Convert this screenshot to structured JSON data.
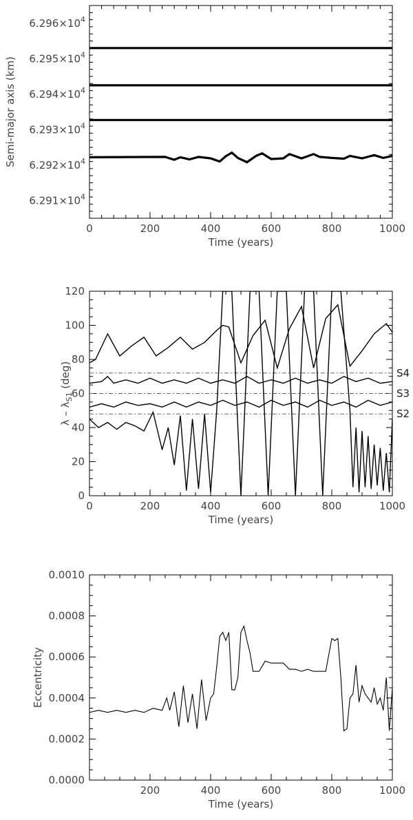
{
  "chart_data": [
    {
      "type": "line",
      "xlabel": "Time (years)",
      "ylabel": "Semi-major axis (km)",
      "xlim": [
        0,
        1000
      ],
      "ylim": [
        62905,
        62965
      ],
      "xticks": [
        "0",
        "200",
        "400",
        "600",
        "800",
        "1000"
      ],
      "yticks": [
        {
          "value": 62910,
          "mantissa": "6.291",
          "base": "×10",
          "exp": "4"
        },
        {
          "value": 62920,
          "mantissa": "6.292",
          "base": "×10",
          "exp": "4"
        },
        {
          "value": 62930,
          "mantissa": "6.293",
          "base": "×10",
          "exp": "4"
        },
        {
          "value": 62940,
          "mantissa": "6.294",
          "base": "×10",
          "exp": "4"
        },
        {
          "value": 62950,
          "mantissa": "6.295",
          "base": "×10",
          "exp": "4"
        },
        {
          "value": 62960,
          "mantissa": "6.296",
          "base": "×10",
          "exp": "4"
        }
      ],
      "series": [
        {
          "x": [
            0,
            1000
          ],
          "y": [
            62953.0,
            62953.0
          ]
        },
        {
          "x": [
            0,
            1000
          ],
          "y": [
            62942.5,
            62942.5
          ]
        },
        {
          "x": [
            0,
            1000
          ],
          "y": [
            62932.7,
            62932.7
          ]
        },
        {
          "x": [
            0,
            250,
            260,
            280,
            300,
            330,
            360,
            400,
            430,
            450,
            470,
            490,
            520,
            550,
            570,
            600,
            640,
            660,
            700,
            740,
            760,
            800,
            840,
            860,
            900,
            940,
            970,
            1000
          ],
          "y": [
            62922.2,
            62922.3,
            62922.0,
            62921.5,
            62922.2,
            62921.6,
            62922.3,
            62921.9,
            62921.0,
            62922.5,
            62923.5,
            62922.0,
            62920.8,
            62922.6,
            62923.3,
            62921.7,
            62921.9,
            62923.1,
            62921.9,
            62923.1,
            62922.3,
            62922.0,
            62921.8,
            62922.6,
            62921.9,
            62922.8,
            62922.0,
            62922.6
          ]
        }
      ]
    },
    {
      "type": "line",
      "xlabel": "Time (years)",
      "ylabel": "λ – λ",
      "ylabel_sub": "S1",
      "ylabel_unit": "(deg)",
      "xlim": [
        0,
        1000
      ],
      "ylim": [
        0,
        120
      ],
      "xticks": [
        "0",
        "200",
        "400",
        "600",
        "800",
        "1000"
      ],
      "yticks": [
        "0",
        "20",
        "40",
        "60",
        "80",
        "100",
        "120"
      ],
      "reference_lines": [
        {
          "name": "S4",
          "y": 72
        },
        {
          "name": "S3",
          "y": 60
        },
        {
          "name": "S2",
          "y": 48
        }
      ],
      "series": [
        {
          "x": [
            0,
            20,
            60,
            100,
            140,
            180,
            220,
            260,
            300,
            340,
            380,
            420,
            440,
            460,
            500,
            540,
            580,
            620,
            660,
            700,
            740,
            780,
            820,
            860,
            900,
            940,
            980,
            1000
          ],
          "y": [
            78,
            80,
            95,
            82,
            88,
            93,
            82,
            87,
            93,
            86,
            90,
            97,
            100,
            99,
            78,
            94,
            103,
            75,
            98,
            111,
            75,
            104,
            112,
            76,
            85,
            95,
            101,
            96
          ]
        },
        {
          "x": [
            0,
            40,
            60,
            80,
            120,
            160,
            200,
            240,
            280,
            320,
            360,
            400,
            440,
            480,
            520,
            560,
            600,
            640,
            680,
            720,
            760,
            800,
            840,
            880,
            920,
            960,
            1000
          ],
          "y": [
            66,
            67,
            70,
            66,
            68,
            66,
            69,
            66,
            68,
            66,
            69,
            66,
            68,
            66,
            70,
            66,
            68,
            66,
            69,
            66,
            68,
            66,
            70,
            67,
            69,
            66,
            67
          ]
        },
        {
          "x": [
            0,
            40,
            80,
            120,
            160,
            200,
            240,
            280,
            320,
            360,
            400,
            440,
            480,
            520,
            560,
            600,
            640,
            680,
            720,
            760,
            800,
            840,
            880,
            920,
            960,
            1000
          ],
          "y": [
            52,
            54,
            52,
            55,
            53,
            54,
            52,
            55,
            52,
            55,
            53,
            56,
            53,
            55,
            52,
            56,
            53,
            55,
            52,
            56,
            53,
            55,
            52,
            56,
            53,
            55
          ]
        },
        {
          "x": [
            0,
            30,
            60,
            90,
            120,
            150,
            180,
            210,
            240,
            260,
            280,
            300,
            320,
            340,
            360,
            380,
            400,
            420,
            440,
            470,
            500,
            530,
            560,
            590,
            620,
            650,
            680,
            710,
            740,
            770,
            800,
            830,
            860,
            870,
            880,
            890,
            900,
            910,
            920,
            930,
            940,
            950,
            960,
            970,
            980,
            990,
            1000
          ],
          "y": [
            45,
            40,
            43,
            39,
            43,
            41,
            38,
            49,
            27,
            40,
            18,
            47,
            3,
            45,
            4,
            48,
            2,
            50,
            120,
            120,
            0,
            120,
            120,
            0,
            120,
            120,
            0,
            120,
            120,
            0,
            120,
            120,
            50,
            5,
            40,
            2,
            38,
            5,
            35,
            4,
            30,
            6,
            28,
            3,
            25,
            2,
            45
          ]
        }
      ]
    },
    {
      "type": "line",
      "xlabel": "Time (years)",
      "ylabel": "Eccentricity",
      "xlim": [
        0,
        1000
      ],
      "ylim": [
        0,
        0.001
      ],
      "xticks": [
        "200",
        "400",
        "600",
        "800",
        "1000"
      ],
      "yticks": [
        "0.0000",
        "0.0002",
        "0.0004",
        "0.0006",
        "0.0008",
        "0.0010"
      ],
      "series": [
        {
          "x": [
            0,
            30,
            60,
            90,
            120,
            150,
            180,
            210,
            240,
            255,
            265,
            280,
            295,
            310,
            325,
            340,
            355,
            370,
            385,
            400,
            410,
            420,
            430,
            440,
            450,
            460,
            470,
            480,
            490,
            500,
            510,
            520,
            530,
            540,
            560,
            580,
            600,
            620,
            640,
            660,
            680,
            700,
            720,
            740,
            760,
            780,
            800,
            810,
            820,
            830,
            840,
            850,
            860,
            870,
            880,
            890,
            900,
            910,
            920,
            930,
            940,
            950,
            960,
            970,
            980,
            990,
            1000
          ],
          "y": [
            0.00033,
            0.00034,
            0.00033,
            0.00034,
            0.00033,
            0.00034,
            0.00033,
            0.00035,
            0.00034,
            0.0004,
            0.00034,
            0.00043,
            0.00026,
            0.00046,
            0.00028,
            0.00042,
            0.00025,
            0.00049,
            0.00029,
            0.0004,
            0.00042,
            0.00055,
            0.0007,
            0.00072,
            0.00068,
            0.00072,
            0.00044,
            0.00044,
            0.0005,
            0.00072,
            0.00075,
            0.00068,
            0.00062,
            0.00053,
            0.00053,
            0.00058,
            0.00057,
            0.00057,
            0.00057,
            0.00054,
            0.00054,
            0.00053,
            0.00054,
            0.00053,
            0.00053,
            0.00053,
            0.00069,
            0.00068,
            0.00069,
            0.0005,
            0.00024,
            0.00025,
            0.0004,
            0.00042,
            0.00056,
            0.00038,
            0.00046,
            0.00042,
            0.0004,
            0.00038,
            0.00045,
            0.00037,
            0.0004,
            0.00034,
            0.0005,
            0.00024,
            0.00045
          ]
        }
      ]
    }
  ]
}
